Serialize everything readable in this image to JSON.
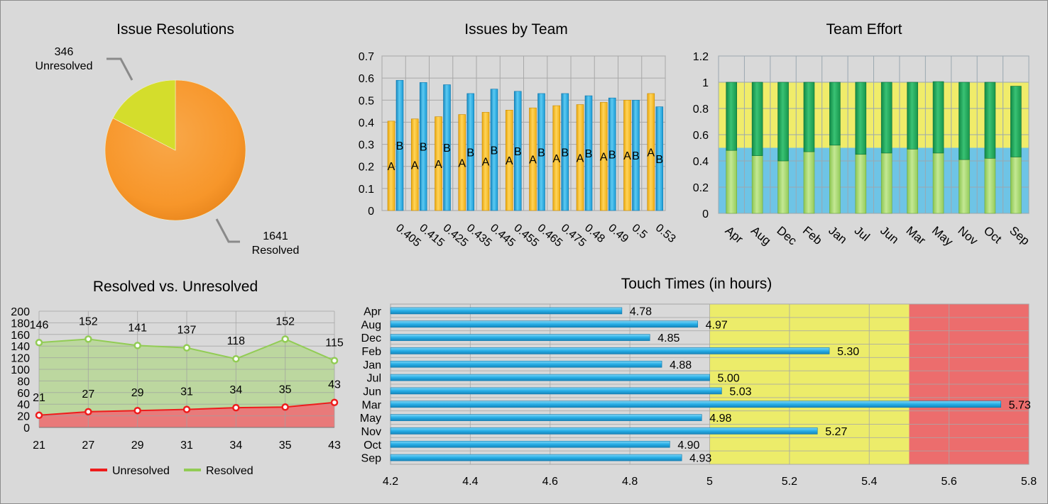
{
  "chart_data": [
    {
      "type": "pie",
      "title": "Issue Resolutions",
      "slices": [
        {
          "name": "Resolved",
          "value": 1641,
          "label_value": "1641",
          "label_name": "Resolved",
          "color": "#f7962a"
        },
        {
          "name": "Unresolved",
          "value": 346,
          "label_value": "346",
          "label_name": "Unresolved",
          "color": "#d4dd2c"
        }
      ]
    },
    {
      "type": "bar",
      "title": "Issues by Team",
      "categories": [
        "0.405",
        "0.415",
        "0.425",
        "0.435",
        "0.445",
        "0.455",
        "0.465",
        "0.475",
        "0.48",
        "0.49",
        "0.5",
        "0.53"
      ],
      "series": [
        {
          "name": "A",
          "color": "#ffc21f",
          "values": [
            0.405,
            0.415,
            0.425,
            0.435,
            0.445,
            0.455,
            0.465,
            0.475,
            0.48,
            0.49,
            0.5,
            0.53
          ]
        },
        {
          "name": "B",
          "color": "#1ea6e2",
          "values": [
            0.59,
            0.58,
            0.57,
            0.53,
            0.55,
            0.54,
            0.53,
            0.53,
            0.52,
            0.51,
            0.5,
            0.47
          ]
        }
      ],
      "ylim": [
        0,
        0.7
      ],
      "yticks": [
        "0",
        "0.1",
        "0.2",
        "0.3",
        "0.4",
        "0.5",
        "0.6",
        "0.7"
      ],
      "grid": true
    },
    {
      "type": "bar",
      "stacked": true,
      "title": "Team Effort",
      "categories": [
        "Apr",
        "Aug",
        "Dec",
        "Feb",
        "Jan",
        "Jul",
        "Jun",
        "Mar",
        "May",
        "Nov",
        "Oct",
        "Sep"
      ],
      "series": [
        {
          "color": "#a6d86a",
          "values": [
            0.48,
            0.44,
            0.4,
            0.47,
            0.52,
            0.45,
            0.46,
            0.49,
            0.46,
            0.41,
            0.42,
            0.43
          ]
        },
        {
          "color": "#1ea55a",
          "values": [
            0.52,
            0.56,
            0.6,
            0.53,
            0.48,
            0.55,
            0.54,
            0.51,
            0.545,
            0.59,
            0.58,
            0.54
          ]
        }
      ],
      "bands": [
        {
          "from": 0,
          "to": 0.5,
          "color": "#6ec4e6"
        },
        {
          "from": 0.5,
          "to": 1.0,
          "color": "#f0ec6a"
        }
      ],
      "ylim": [
        0,
        1.2
      ],
      "yticks": [
        "0",
        "0.2",
        "0.4",
        "0.6",
        "0.8",
        "1",
        "1.2"
      ],
      "grid": true
    },
    {
      "type": "area",
      "title": "Resolved vs. Unresolved",
      "categories": [
        "21",
        "27",
        "29",
        "31",
        "34",
        "35",
        "43"
      ],
      "series": [
        {
          "name": "Unresolved",
          "color": "#ee1c1c",
          "fill": "#e97a7a",
          "values": [
            21,
            27,
            29,
            31,
            34,
            35,
            43
          ]
        },
        {
          "name": "Resolved",
          "color": "#92cc55",
          "fill": "#bcd79f",
          "values": [
            146,
            152,
            141,
            137,
            118,
            152,
            115
          ]
        }
      ],
      "ylim": [
        0,
        200
      ],
      "yticks": [
        "0",
        "20",
        "40",
        "60",
        "80",
        "100",
        "120",
        "140",
        "160",
        "180",
        "200"
      ],
      "legend": "bottom",
      "grid": true
    },
    {
      "type": "bar",
      "orientation": "horizontal",
      "title": "Touch Times (in hours)",
      "categories": [
        "Apr",
        "Aug",
        "Dec",
        "Feb",
        "Jan",
        "Jul",
        "Jun",
        "Mar",
        "May",
        "Nov",
        "Oct",
        "Sep"
      ],
      "values": [
        4.78,
        4.97,
        4.85,
        5.3,
        4.88,
        5.0,
        5.03,
        5.73,
        4.98,
        5.27,
        4.9,
        4.93
      ],
      "value_labels": [
        "4.78",
        "4.97",
        "4.85",
        "5.30",
        "4.88",
        "5.00",
        "5.03",
        "5.73",
        "4.98",
        "5.27",
        "4.90",
        "4.93"
      ],
      "bar_color": "#1ea6e2",
      "bands": [
        {
          "from": 5.0,
          "to": 5.5,
          "color": "#ecec6a"
        },
        {
          "from": 5.5,
          "to": 5.8,
          "color": "#ec6d6d"
        }
      ],
      "xlim": [
        4.2,
        5.8
      ],
      "xticks": [
        "4.2",
        "4.4",
        "4.6",
        "4.8",
        "5",
        "5.2",
        "5.4",
        "5.6",
        "5.8"
      ],
      "grid": true
    }
  ]
}
